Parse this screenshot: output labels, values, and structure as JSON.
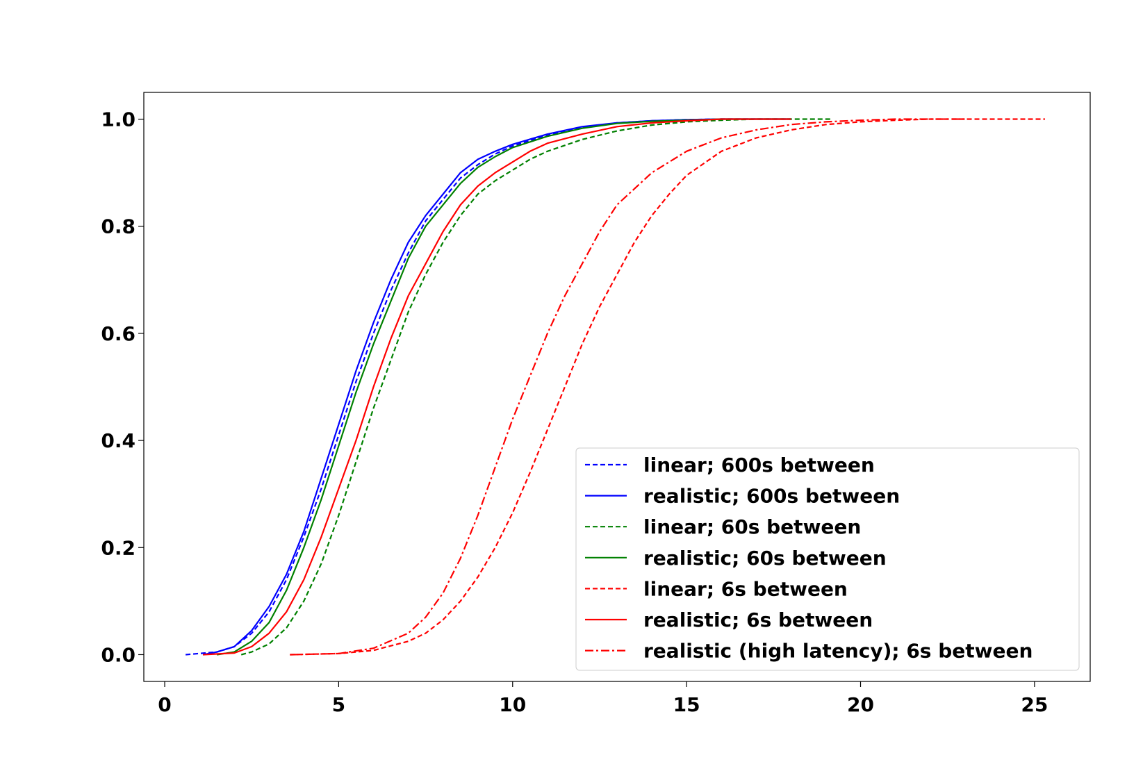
{
  "chart_data": {
    "type": "line",
    "title": "",
    "xlabel": "",
    "ylabel": "",
    "xlim": [
      -0.6,
      26.6
    ],
    "ylim": [
      -0.05,
      1.05
    ],
    "xticks": [
      0,
      5,
      10,
      15,
      20,
      25
    ],
    "yticks": [
      0.0,
      0.2,
      0.4,
      0.6,
      0.8,
      1.0
    ],
    "xtick_labels": [
      "0",
      "5",
      "10",
      "15",
      "20",
      "25"
    ],
    "ytick_labels": [
      "0.0",
      "0.2",
      "0.4",
      "0.6",
      "0.8",
      "1.0"
    ],
    "grid": false,
    "legend_position": "bottom-right",
    "series": [
      {
        "name": "linear; 600s between",
        "color": "#0000ff",
        "style": "dashed",
        "points": [
          [
            0.6,
            0.0
          ],
          [
            1.5,
            0.005
          ],
          [
            2.0,
            0.015
          ],
          [
            2.5,
            0.04
          ],
          [
            3.0,
            0.08
          ],
          [
            3.5,
            0.14
          ],
          [
            4.0,
            0.22
          ],
          [
            4.5,
            0.31
          ],
          [
            5.0,
            0.41
          ],
          [
            5.5,
            0.51
          ],
          [
            6.0,
            0.6
          ],
          [
            6.5,
            0.68
          ],
          [
            7.0,
            0.75
          ],
          [
            7.5,
            0.81
          ],
          [
            8.0,
            0.85
          ],
          [
            8.5,
            0.89
          ],
          [
            9.0,
            0.915
          ],
          [
            9.5,
            0.935
          ],
          [
            10.0,
            0.95
          ],
          [
            11.0,
            0.97
          ],
          [
            12.0,
            0.985
          ],
          [
            13.0,
            0.993
          ],
          [
            14.0,
            0.997
          ],
          [
            15.0,
            0.999
          ],
          [
            16.0,
            1.0
          ],
          [
            18.0,
            1.0
          ]
        ]
      },
      {
        "name": "realistic; 600s between",
        "color": "#0000ff",
        "style": "solid",
        "points": [
          [
            1.1,
            0.0
          ],
          [
            1.5,
            0.005
          ],
          [
            2.0,
            0.015
          ],
          [
            2.5,
            0.045
          ],
          [
            3.0,
            0.09
          ],
          [
            3.5,
            0.15
          ],
          [
            4.0,
            0.23
          ],
          [
            4.5,
            0.33
          ],
          [
            5.0,
            0.43
          ],
          [
            5.5,
            0.53
          ],
          [
            6.0,
            0.62
          ],
          [
            6.5,
            0.7
          ],
          [
            7.0,
            0.77
          ],
          [
            7.5,
            0.82
          ],
          [
            8.0,
            0.86
          ],
          [
            8.5,
            0.9
          ],
          [
            9.0,
            0.925
          ],
          [
            9.5,
            0.94
          ],
          [
            10.0,
            0.953
          ],
          [
            11.0,
            0.972
          ],
          [
            12.0,
            0.986
          ],
          [
            13.0,
            0.993
          ],
          [
            14.0,
            0.997
          ],
          [
            15.0,
            0.999
          ],
          [
            16.0,
            1.0
          ],
          [
            18.0,
            1.0
          ]
        ]
      },
      {
        "name": "linear; 60s between",
        "color": "#008000",
        "style": "dashed",
        "points": [
          [
            2.2,
            0.0
          ],
          [
            2.5,
            0.005
          ],
          [
            3.0,
            0.02
          ],
          [
            3.5,
            0.05
          ],
          [
            4.0,
            0.1
          ],
          [
            4.5,
            0.17
          ],
          [
            5.0,
            0.26
          ],
          [
            5.5,
            0.36
          ],
          [
            6.0,
            0.46
          ],
          [
            6.5,
            0.55
          ],
          [
            7.0,
            0.64
          ],
          [
            7.5,
            0.71
          ],
          [
            8.0,
            0.77
          ],
          [
            8.5,
            0.82
          ],
          [
            9.0,
            0.86
          ],
          [
            9.5,
            0.885
          ],
          [
            10.0,
            0.905
          ],
          [
            10.5,
            0.925
          ],
          [
            11.0,
            0.94
          ],
          [
            12.0,
            0.962
          ],
          [
            13.0,
            0.978
          ],
          [
            14.0,
            0.989
          ],
          [
            15.0,
            0.995
          ],
          [
            16.0,
            0.998
          ],
          [
            17.0,
            1.0
          ],
          [
            19.2,
            1.0
          ]
        ]
      },
      {
        "name": "realistic; 60s between",
        "color": "#008000",
        "style": "solid",
        "points": [
          [
            1.5,
            0.0
          ],
          [
            2.0,
            0.005
          ],
          [
            2.5,
            0.025
          ],
          [
            3.0,
            0.06
          ],
          [
            3.5,
            0.12
          ],
          [
            4.0,
            0.2
          ],
          [
            4.5,
            0.29
          ],
          [
            5.0,
            0.39
          ],
          [
            5.5,
            0.49
          ],
          [
            6.0,
            0.58
          ],
          [
            6.5,
            0.66
          ],
          [
            7.0,
            0.74
          ],
          [
            7.5,
            0.8
          ],
          [
            8.0,
            0.84
          ],
          [
            8.5,
            0.88
          ],
          [
            9.0,
            0.91
          ],
          [
            9.5,
            0.93
          ],
          [
            10.0,
            0.947
          ],
          [
            11.0,
            0.968
          ],
          [
            12.0,
            0.983
          ],
          [
            13.0,
            0.992
          ],
          [
            14.0,
            0.996
          ],
          [
            15.0,
            0.998
          ],
          [
            16.0,
            1.0
          ],
          [
            18.0,
            1.0
          ]
        ]
      },
      {
        "name": "linear; 6s between",
        "color": "#ff0000",
        "style": "dashed",
        "points": [
          [
            3.6,
            0.0
          ],
          [
            5.0,
            0.002
          ],
          [
            6.0,
            0.008
          ],
          [
            7.0,
            0.025
          ],
          [
            7.5,
            0.04
          ],
          [
            8.0,
            0.065
          ],
          [
            8.5,
            0.1
          ],
          [
            9.0,
            0.145
          ],
          [
            9.5,
            0.2
          ],
          [
            10.0,
            0.265
          ],
          [
            10.5,
            0.34
          ],
          [
            11.0,
            0.42
          ],
          [
            11.5,
            0.5
          ],
          [
            12.0,
            0.58
          ],
          [
            12.5,
            0.65
          ],
          [
            13.0,
            0.71
          ],
          [
            13.5,
            0.77
          ],
          [
            14.0,
            0.82
          ],
          [
            14.5,
            0.86
          ],
          [
            15.0,
            0.895
          ],
          [
            16.0,
            0.94
          ],
          [
            17.0,
            0.965
          ],
          [
            18.0,
            0.98
          ],
          [
            19.0,
            0.99
          ],
          [
            20.0,
            0.995
          ],
          [
            21.0,
            0.998
          ],
          [
            22.0,
            1.0
          ],
          [
            25.3,
            1.0
          ]
        ]
      },
      {
        "name": "realistic; 6s between",
        "color": "#ff0000",
        "style": "solid",
        "points": [
          [
            1.1,
            0.0
          ],
          [
            2.0,
            0.003
          ],
          [
            2.5,
            0.015
          ],
          [
            3.0,
            0.04
          ],
          [
            3.5,
            0.08
          ],
          [
            4.0,
            0.14
          ],
          [
            4.5,
            0.22
          ],
          [
            5.0,
            0.31
          ],
          [
            5.5,
            0.4
          ],
          [
            6.0,
            0.5
          ],
          [
            6.5,
            0.59
          ],
          [
            7.0,
            0.67
          ],
          [
            7.5,
            0.73
          ],
          [
            8.0,
            0.79
          ],
          [
            8.5,
            0.84
          ],
          [
            9.0,
            0.875
          ],
          [
            9.5,
            0.9
          ],
          [
            10.0,
            0.92
          ],
          [
            10.5,
            0.94
          ],
          [
            11.0,
            0.955
          ],
          [
            12.0,
            0.972
          ],
          [
            13.0,
            0.986
          ],
          [
            14.0,
            0.993
          ],
          [
            15.0,
            0.997
          ],
          [
            16.0,
            1.0
          ],
          [
            18.0,
            1.0
          ]
        ]
      },
      {
        "name": "realistic (high latency); 6s between",
        "color": "#ff0000",
        "style": "dashdot",
        "points": [
          [
            3.6,
            0.0
          ],
          [
            5.0,
            0.002
          ],
          [
            6.0,
            0.012
          ],
          [
            7.0,
            0.04
          ],
          [
            7.5,
            0.07
          ],
          [
            8.0,
            0.115
          ],
          [
            8.5,
            0.18
          ],
          [
            9.0,
            0.26
          ],
          [
            9.5,
            0.35
          ],
          [
            10.0,
            0.44
          ],
          [
            10.5,
            0.52
          ],
          [
            11.0,
            0.6
          ],
          [
            11.5,
            0.67
          ],
          [
            12.0,
            0.73
          ],
          [
            12.5,
            0.79
          ],
          [
            13.0,
            0.84
          ],
          [
            14.0,
            0.9
          ],
          [
            15.0,
            0.94
          ],
          [
            16.0,
            0.965
          ],
          [
            17.0,
            0.98
          ],
          [
            18.0,
            0.99
          ],
          [
            19.0,
            0.995
          ],
          [
            20.0,
            0.998
          ],
          [
            21.0,
            1.0
          ],
          [
            23.0,
            1.0
          ]
        ]
      }
    ]
  }
}
